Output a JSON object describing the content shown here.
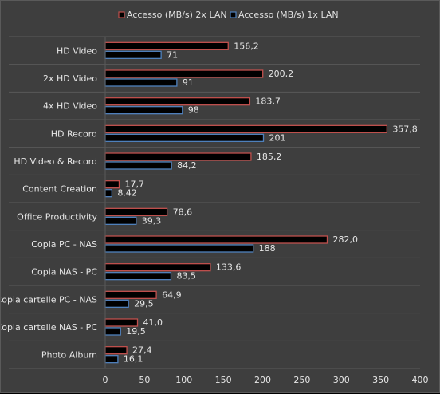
{
  "chart_data": {
    "type": "bar",
    "orientation": "horizontal",
    "categories": [
      "HD Video",
      "2x HD Video",
      "4x HD Video",
      "HD Record",
      "HD Video & Record",
      "Content Creation",
      "Office Productivity",
      "Copia PC - NAS",
      "Copia NAS - PC",
      "Copia cartelle PC - NAS",
      "Copia cartelle NAS - PC",
      "Photo Album"
    ],
    "series": [
      {
        "name": "Accesso (MB/s) 2x LAN",
        "values": [
          156.2,
          200.2,
          183.7,
          357.8,
          185.2,
          17.7,
          78.6,
          282.0,
          133.6,
          64.9,
          41.0,
          27.4
        ],
        "labels": [
          "156,2",
          "200,2",
          "183,7",
          "357,8",
          "185,2",
          "17,7",
          "78,6",
          "282,0",
          "133,6",
          "64,9",
          "41,0",
          "27,4"
        ],
        "color": "#c0504d"
      },
      {
        "name": "Accesso (MB/s) 1x LAN",
        "values": [
          71,
          91,
          98,
          201,
          84.2,
          8.42,
          39.3,
          188,
          83.5,
          29.5,
          19.5,
          16.1
        ],
        "labels": [
          "71",
          "91",
          "98",
          "201",
          "84,2",
          "8,42",
          "39,3",
          "188",
          "83,5",
          "29,5",
          "19,5",
          "16,1"
        ],
        "color": "#4f81bd"
      }
    ],
    "xlim": [
      0,
      400
    ],
    "x_ticks": [
      0,
      50,
      100,
      150,
      200,
      250,
      300,
      350,
      400
    ],
    "grid": "horizontal separators between categories",
    "legend_position": "top",
    "title": "",
    "xlabel": "",
    "ylabel": ""
  },
  "colors": {
    "background": "#3e3e3e",
    "border": "#5a5a5a",
    "grid": "#595959",
    "text": "#e6e6e6"
  }
}
